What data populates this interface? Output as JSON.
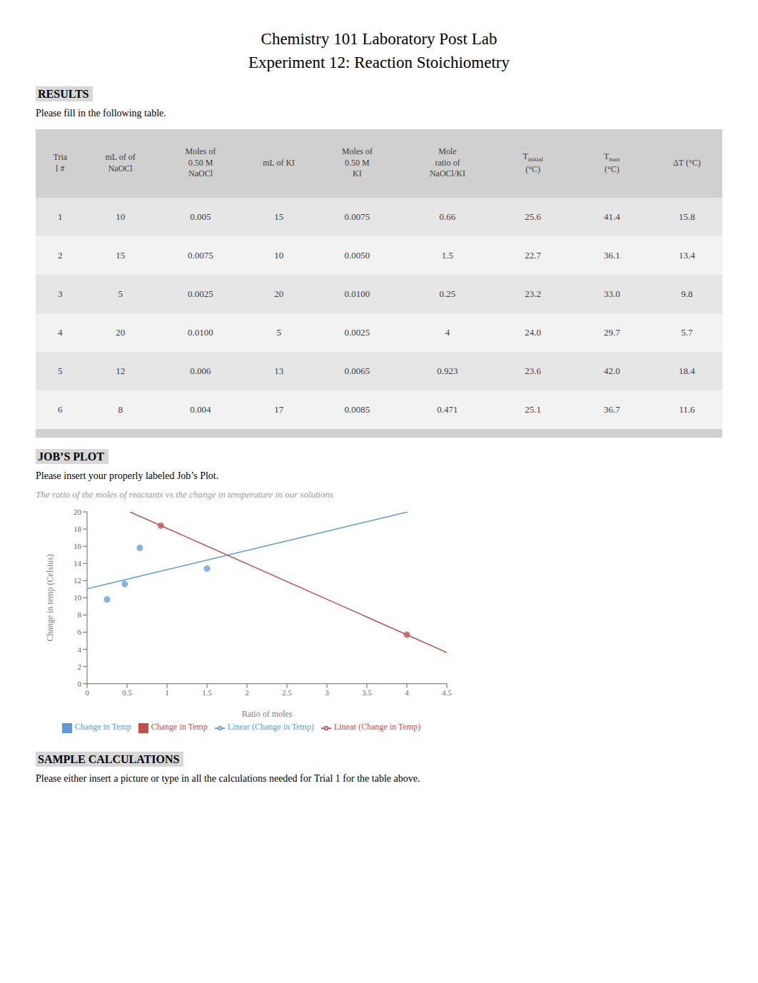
{
  "title": "Chemistry 101 Laboratory Post Lab",
  "subtitle": "Experiment 12: Reaction Stoichiometry",
  "sections": [
    {
      "heading": "RESULTS",
      "text": "Please fill in the following table."
    },
    {
      "heading": "JOB’S PLOT",
      "text": "Please insert your properly labeled Job’s Plot."
    },
    {
      "heading": "SAMPLE CALCULATIONS",
      "text": "Please either insert a picture or type in all the calculations needed for Trial 1 for the table above."
    }
  ],
  "table": {
    "columns": [
      {
        "lines": [
          "Tria",
          "l #"
        ]
      },
      {
        "lines": [
          "mL of of",
          "NaOCl"
        ]
      },
      {
        "lines": [
          "Moles of",
          "0.50 M",
          "NaOCl"
        ]
      },
      {
        "lines": [
          "mL of KI"
        ]
      },
      {
        "lines": [
          "Moles of",
          "0.50 M",
          "KI"
        ]
      },
      {
        "lines": [
          "Mole",
          "ratio of",
          "NaOCl/KI"
        ]
      },
      {
        "lines": [
          "T",
          "(°C)"
        ],
        "sub": "initial"
      },
      {
        "lines": [
          "T",
          "(°C)"
        ],
        "sub": "max"
      },
      {
        "lines": [
          "ΔT (°C)"
        ]
      }
    ],
    "rows": [
      [
        "1",
        "10",
        "0.005",
        "15",
        "0.0075",
        "0.66",
        "25.6",
        "41.4",
        "15.8"
      ],
      [
        "2",
        "15",
        "0.0075",
        "10",
        "0.0050",
        "1.5",
        "22.7",
        "36.1",
        "13.4"
      ],
      [
        "3",
        "5",
        "0.0025",
        "20",
        "0.0100",
        "0.25",
        "23.2",
        "33.0",
        "9.8"
      ],
      [
        "4",
        "20",
        "0.0100",
        "5",
        "0.0025",
        "4",
        "24.0",
        "29.7",
        "5.7"
      ],
      [
        "5",
        "12",
        "0.006",
        "13",
        "0.0065",
        "0.923",
        "23.6",
        "42.0",
        "18.4"
      ],
      [
        "6",
        "8",
        "0.004",
        "17",
        "0.0085",
        "0.471",
        "25.1",
        "36.7",
        "11.6"
      ]
    ]
  },
  "chart_data": {
    "type": "scatter",
    "title": "The ratio of the moles of reactants vs the change in temperature in our solutions",
    "xlabel": "Ratio of moles",
    "ylabel": "Change in temp (Celsius)",
    "xlim": [
      0,
      4.5
    ],
    "ylim": [
      0,
      20
    ],
    "xticks": [
      0,
      0.5,
      1,
      1.5,
      2,
      2.5,
      3,
      3.5,
      4,
      4.5
    ],
    "yticks": [
      0,
      2,
      4,
      6,
      8,
      10,
      12,
      14,
      16,
      18,
      20
    ],
    "grid": false,
    "legend": "bottom",
    "series": [
      {
        "name": "Change in Temp",
        "type": "scatter",
        "marker": "circle",
        "color": "#5B9BD5",
        "x": [
          0.66,
          1.5,
          0.25,
          0.471
        ],
        "values": [
          15.8,
          13.4,
          9.8,
          11.6
        ]
      },
      {
        "name": "Change in Temp",
        "type": "scatter",
        "marker": "circle",
        "color": "#C0504D",
        "x": [
          4.0,
          0.923
        ],
        "values": [
          5.7,
          18.4
        ]
      },
      {
        "name": "Linear (Change in Temp)",
        "type": "line",
        "line_style": "solid",
        "color": "#5B9BD5",
        "x": [
          0,
          4.014
        ],
        "values": [
          11.043,
          20
        ]
      },
      {
        "name": "Linear (Change in Temp)",
        "type": "line",
        "line_style": "solid",
        "color": "#C0504D",
        "x": [
          0.5353,
          4.5
        ],
        "values": [
          20,
          3.636
        ]
      }
    ]
  }
}
